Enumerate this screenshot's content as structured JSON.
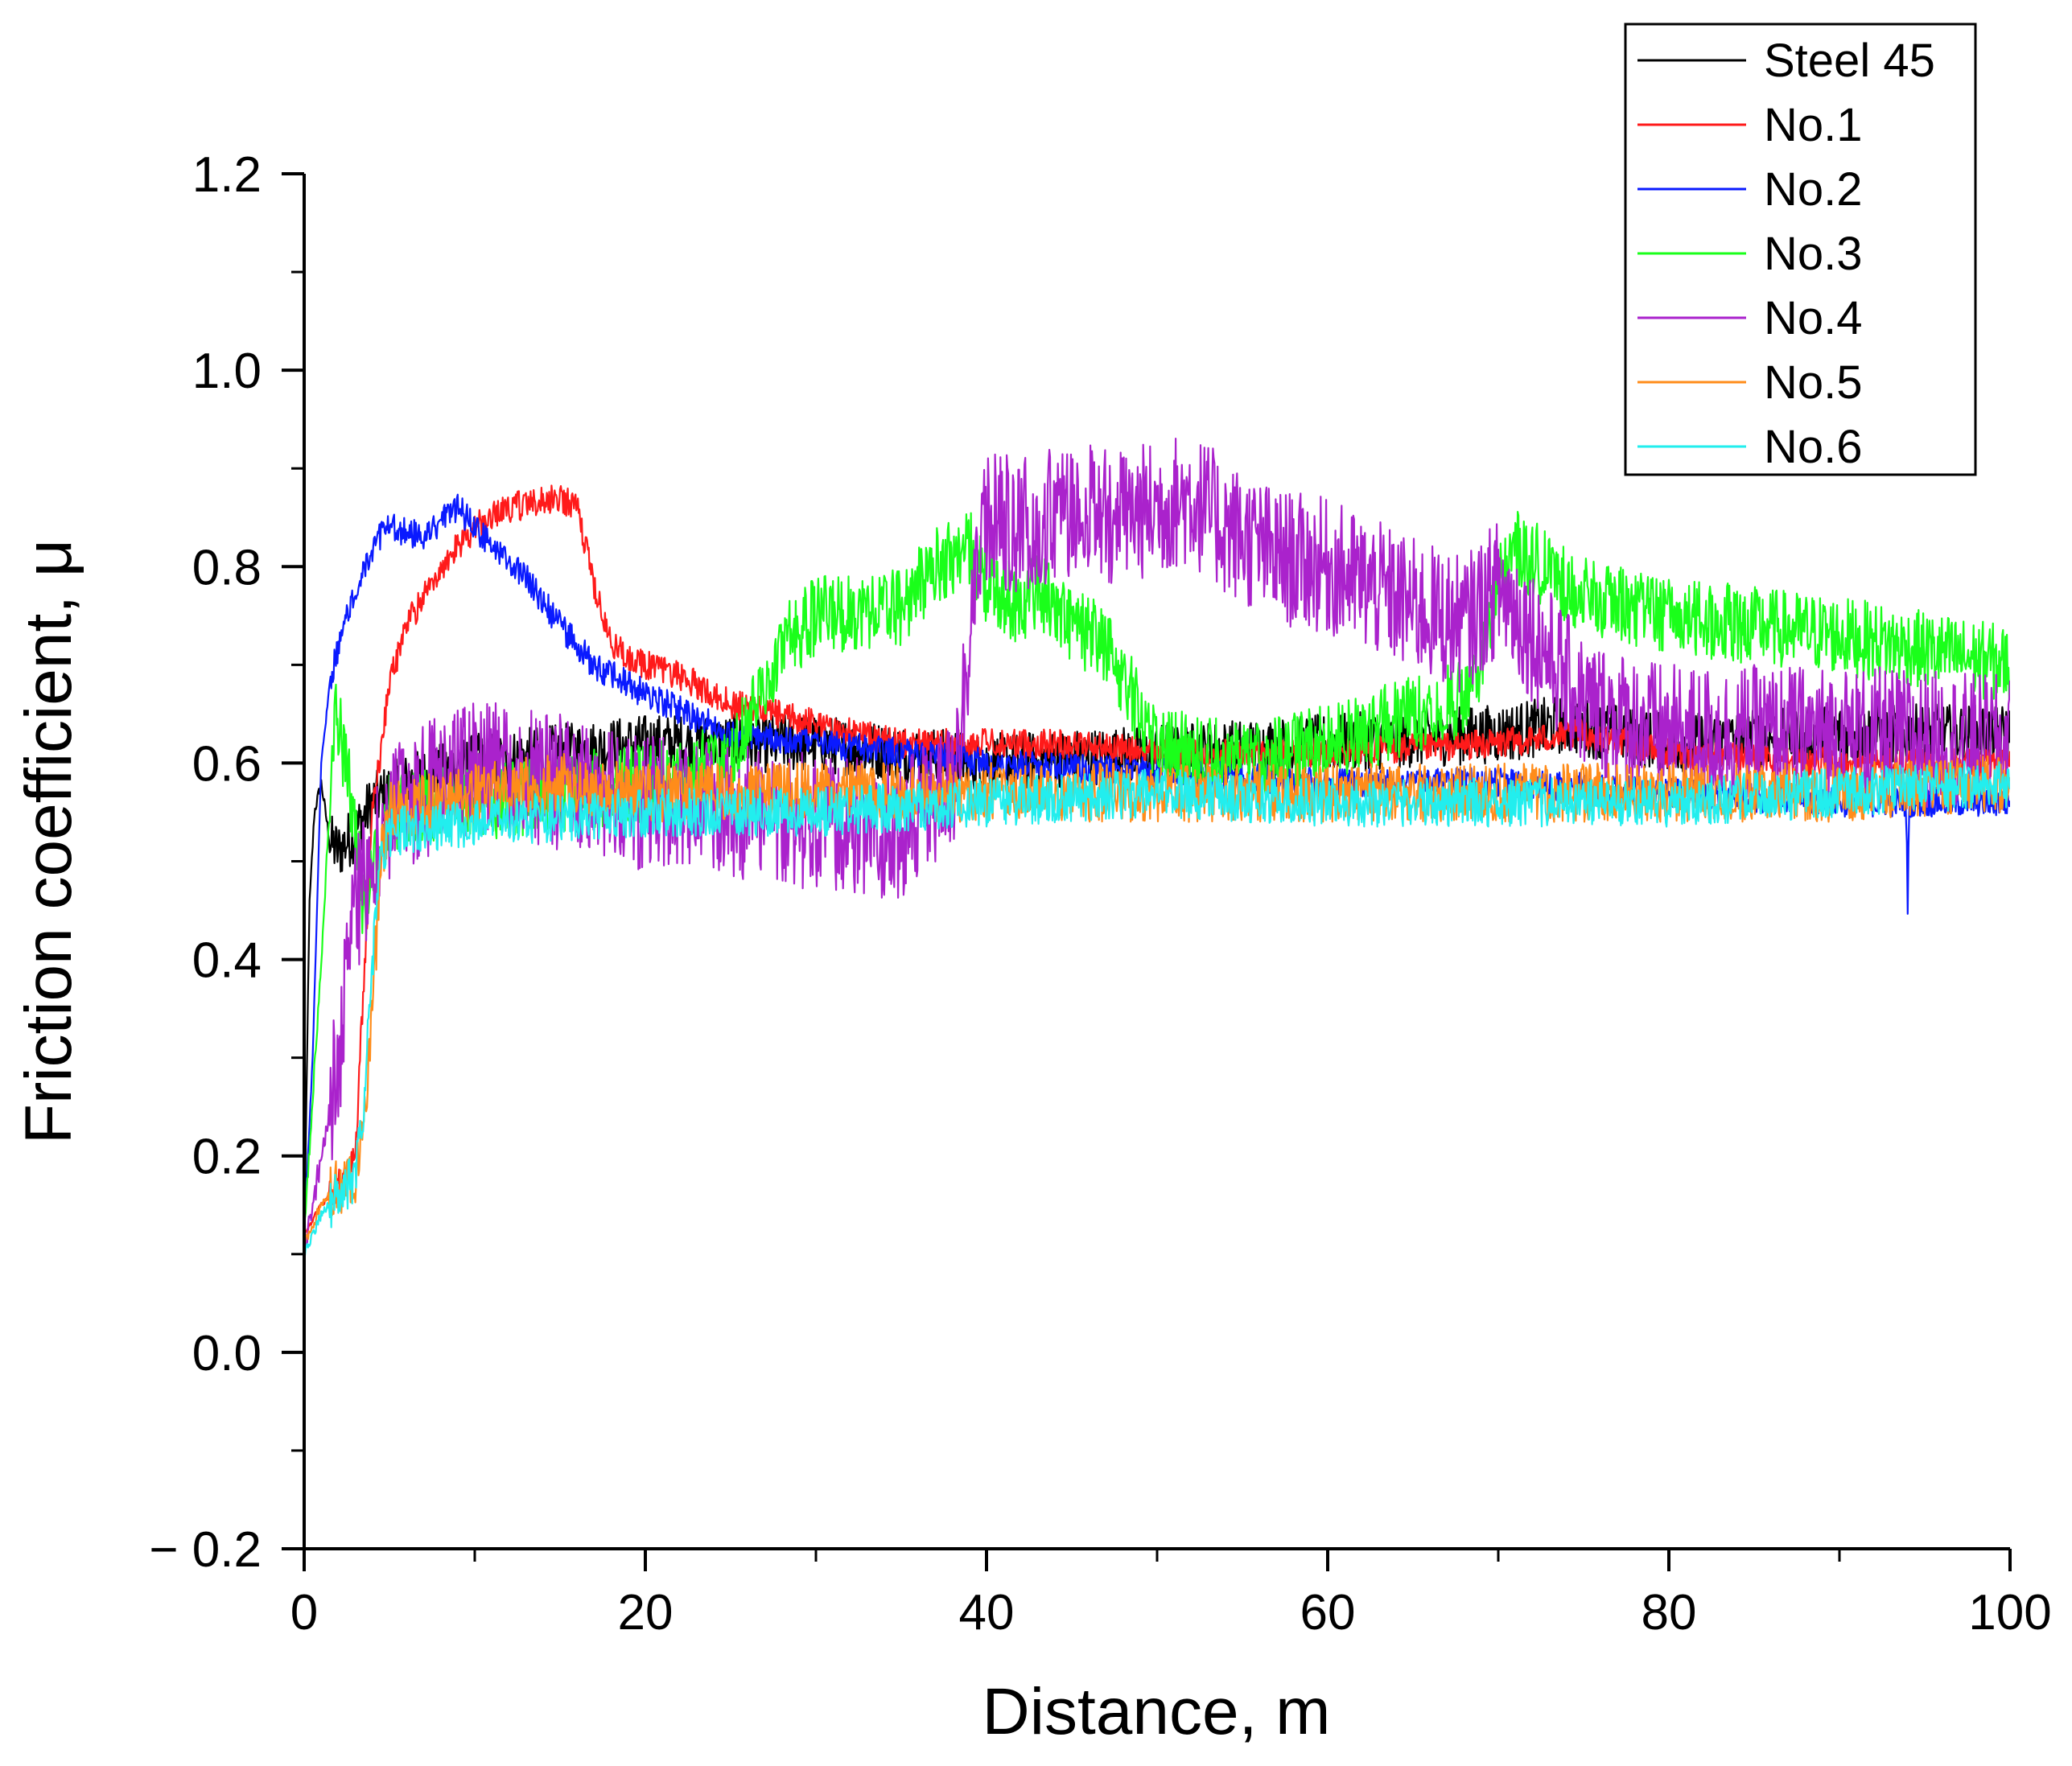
{
  "chart_data": {
    "type": "line",
    "title": "",
    "xlabel": "Distance, m",
    "ylabel": "Friction coefficient, μ",
    "xlim": [
      0,
      100
    ],
    "ylim": [
      -0.2,
      1.2
    ],
    "xticks": [
      0,
      20,
      40,
      60,
      80,
      100
    ],
    "xtick_labels": [
      "0",
      "20",
      "40",
      "60",
      "80",
      "100"
    ],
    "yticks": [
      -0.2,
      0.0,
      0.2,
      0.4,
      0.6,
      0.8,
      1.0,
      1.2
    ],
    "ytick_labels": [
      "− 0.2",
      "0.0",
      "0.2",
      "0.4",
      "0.6",
      "0.8",
      "1.0",
      "1.2"
    ],
    "grid": false,
    "legend_position": "top-right",
    "series": [
      {
        "name": "Steel 45",
        "color": "#000000",
        "noise": 0.03,
        "x": [
          0,
          0.3,
          0.6,
          1,
          1.5,
          2,
          3,
          4,
          6,
          10,
          20,
          30,
          40,
          50,
          60,
          70,
          74,
          80,
          90,
          100
        ],
        "y": [
          0.1,
          0.45,
          0.55,
          0.58,
          0.52,
          0.51,
          0.53,
          0.56,
          0.58,
          0.6,
          0.62,
          0.62,
          0.6,
          0.61,
          0.62,
          0.63,
          0.64,
          0.62,
          0.63,
          0.63
        ]
      },
      {
        "name": "No.1",
        "color": "#ff1a1a",
        "noise": 0.015,
        "x": [
          0,
          1,
          2,
          3,
          3.5,
          4,
          5,
          6,
          8,
          10,
          12,
          15,
          16,
          17,
          18,
          20,
          22,
          25,
          30,
          35,
          40,
          45,
          50,
          60,
          70,
          75,
          80,
          90,
          100
        ],
        "y": [
          0.12,
          0.15,
          0.17,
          0.2,
          0.38,
          0.55,
          0.68,
          0.74,
          0.8,
          0.84,
          0.86,
          0.87,
          0.86,
          0.78,
          0.72,
          0.7,
          0.69,
          0.66,
          0.64,
          0.62,
          0.62,
          0.62,
          0.61,
          0.61,
          0.62,
          0.63,
          0.61,
          0.6,
          0.6
        ]
      },
      {
        "name": "No.2",
        "color": "#0a1aff",
        "noise": 0.015,
        "x": [
          0,
          0.5,
          1,
          1.5,
          2,
          3,
          4,
          5,
          7,
          9,
          11,
          13,
          15,
          17,
          20,
          25,
          30,
          40,
          50,
          60,
          70,
          80,
          90,
          93.9,
          94,
          94.1,
          100
        ],
        "y": [
          0.12,
          0.3,
          0.6,
          0.68,
          0.72,
          0.78,
          0.82,
          0.84,
          0.83,
          0.86,
          0.82,
          0.79,
          0.74,
          0.7,
          0.67,
          0.63,
          0.62,
          0.6,
          0.59,
          0.58,
          0.58,
          0.57,
          0.56,
          0.56,
          0.46,
          0.56,
          0.56
        ]
      },
      {
        "name": "No.3",
        "color": "#1aff1a",
        "noise": 0.04,
        "x": [
          0,
          1,
          1.8,
          2.5,
          3.5,
          5,
          10,
          20,
          25,
          28,
          30,
          35,
          37,
          39,
          40,
          42,
          43,
          45,
          47,
          50,
          55,
          60,
          65,
          68.5,
          70,
          71,
          75,
          80,
          90,
          100
        ],
        "y": [
          0.12,
          0.4,
          0.65,
          0.6,
          0.45,
          0.55,
          0.56,
          0.58,
          0.6,
          0.72,
          0.75,
          0.76,
          0.8,
          0.82,
          0.78,
          0.76,
          0.78,
          0.74,
          0.72,
          0.62,
          0.6,
          0.62,
          0.65,
          0.67,
          0.78,
          0.82,
          0.77,
          0.75,
          0.73,
          0.7
        ]
      },
      {
        "name": "No.4",
        "color": "#aa22cc",
        "noise": 0.07,
        "x": [
          0,
          1,
          2,
          3,
          5,
          10,
          20,
          30,
          35,
          38,
          40,
          42,
          45,
          48,
          50,
          52,
          54,
          57,
          60,
          65,
          68,
          70,
          75,
          80,
          90,
          100
        ],
        "y": [
          0.1,
          0.2,
          0.3,
          0.45,
          0.55,
          0.6,
          0.56,
          0.54,
          0.53,
          0.58,
          0.85,
          0.84,
          0.86,
          0.85,
          0.86,
          0.87,
          0.84,
          0.81,
          0.8,
          0.76,
          0.74,
          0.78,
          0.66,
          0.63,
          0.63,
          0.62
        ]
      },
      {
        "name": "No.5",
        "color": "#ff8c1a",
        "noise": 0.03,
        "x": [
          0,
          1,
          2,
          3,
          3.5,
          4,
          4.5,
          5,
          10,
          15,
          20,
          30,
          40,
          50,
          60,
          70,
          80,
          90,
          100
        ],
        "y": [
          0.11,
          0.15,
          0.17,
          0.18,
          0.22,
          0.35,
          0.5,
          0.55,
          0.57,
          0.58,
          0.57,
          0.57,
          0.57,
          0.57,
          0.57,
          0.57,
          0.57,
          0.57,
          0.58
        ]
      },
      {
        "name": "No.6",
        "color": "#22eeee",
        "noise": 0.025,
        "x": [
          0,
          1,
          2,
          3,
          3.5,
          4,
          4.5,
          5,
          10,
          20,
          30,
          40,
          50,
          60,
          70,
          80,
          90,
          100
        ],
        "y": [
          0.1,
          0.14,
          0.16,
          0.18,
          0.25,
          0.4,
          0.5,
          0.53,
          0.54,
          0.55,
          0.55,
          0.56,
          0.57,
          0.56,
          0.56,
          0.56,
          0.57,
          0.58
        ]
      }
    ]
  }
}
